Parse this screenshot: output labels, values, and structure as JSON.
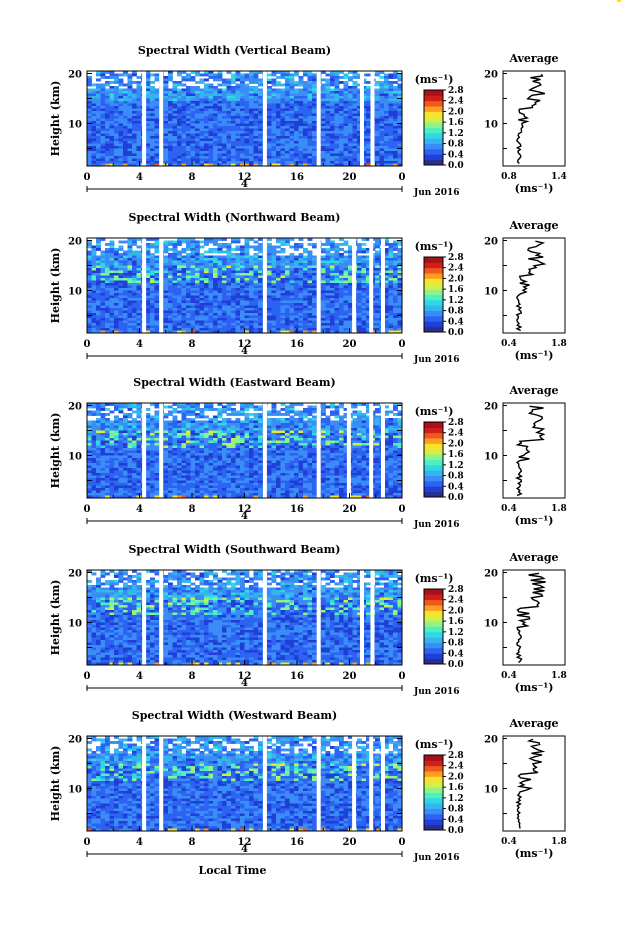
{
  "colorbar": {
    "unit_label": "(ms⁻¹)",
    "ticks": [
      "0.0",
      "0.4",
      "0.8",
      "1.2",
      "1.6",
      "2.0",
      "2.4",
      "2.8"
    ],
    "colors": [
      "#2a2f8f",
      "#1f3fd6",
      "#2d63f2",
      "#3a8cf7",
      "#35b4f0",
      "#30d8e6",
      "#4ef0c0",
      "#8ef48a",
      "#d4f046",
      "#fbe12c",
      "#fb9e22",
      "#f0581c",
      "#cf1f1a",
      "#a8101a"
    ]
  },
  "axes": {
    "x_ticks": [
      "0",
      "4",
      "8",
      "12",
      "16",
      "20",
      "0"
    ],
    "y_label": "Height (km)",
    "y_ticks": [
      "10",
      "20"
    ],
    "date_label": "Jun 2016",
    "day_marker": "4",
    "xlabel": "Local Time"
  },
  "average_title": "Average",
  "average_xlabel": "(ms⁻¹)",
  "chart_data": [
    {
      "type": "heatmap",
      "title": "Spectral Width (Vertical Beam)",
      "ylabel": "Height (km)",
      "xlabel": "Local Time",
      "xlim": [
        0,
        24
      ],
      "ylim": [
        1.5,
        20.5
      ],
      "clim": [
        0.0,
        3.0
      ],
      "gap_hours": [
        4.2,
        5.5,
        13.4,
        17.5,
        20.8,
        21.6
      ],
      "profile": {
        "title": "Average",
        "xlabel": "(ms⁻¹)",
        "xlim": [
          0.8,
          1.4
        ],
        "x_ticks": [
          "0.8",
          "1.4"
        ],
        "y_ticks": [
          "10",
          "20"
        ]
      }
    },
    {
      "type": "heatmap",
      "title": "Spectral Width (Northward Beam)",
      "ylabel": "Height (km)",
      "xlabel": "Local Time",
      "xlim": [
        0,
        24
      ],
      "ylim": [
        1.5,
        20.5
      ],
      "clim": [
        0.0,
        3.0
      ],
      "gap_hours": [
        4.2,
        5.5,
        13.4,
        17.5,
        20.2,
        21.5,
        22.4
      ],
      "profile": {
        "title": "Average",
        "xlabel": "(ms⁻¹)",
        "xlim": [
          0.4,
          1.8
        ],
        "x_ticks": [
          "0.4",
          "1.8"
        ],
        "y_ticks": [
          "10",
          "20"
        ]
      }
    },
    {
      "type": "heatmap",
      "title": "Spectral Width (Eastward Beam)",
      "ylabel": "Height (km)",
      "xlabel": "Local Time",
      "xlim": [
        0,
        24
      ],
      "ylim": [
        1.5,
        20.5
      ],
      "clim": [
        0.0,
        3.0
      ],
      "gap_hours": [
        4.2,
        5.5,
        13.4,
        17.5,
        19.8,
        21.5,
        22.4
      ],
      "profile": {
        "title": "Average",
        "xlabel": "(ms⁻¹)",
        "xlim": [
          0.4,
          1.8
        ],
        "x_ticks": [
          "0.4",
          "1.8"
        ],
        "y_ticks": [
          "10",
          "20"
        ]
      }
    },
    {
      "type": "heatmap",
      "title": "Spectral Width (Southward Beam)",
      "ylabel": "Height (km)",
      "xlabel": "Local Time",
      "xlim": [
        0,
        24
      ],
      "ylim": [
        1.5,
        20.5
      ],
      "clim": [
        0.0,
        3.0
      ],
      "gap_hours": [
        4.2,
        5.5,
        13.4,
        17.5,
        20.8,
        21.6
      ],
      "profile": {
        "title": "Average",
        "xlabel": "(ms⁻¹)",
        "xlim": [
          0.4,
          1.8
        ],
        "x_ticks": [
          "0.4",
          "1.8"
        ],
        "y_ticks": [
          "10",
          "20"
        ]
      }
    },
    {
      "type": "heatmap",
      "title": "Spectral Width (Westward Beam)",
      "ylabel": "Height (km)",
      "xlabel": "Local Time",
      "xlim": [
        0,
        24
      ],
      "ylim": [
        1.5,
        20.5
      ],
      "clim": [
        0.0,
        3.0
      ],
      "gap_hours": [
        4.2,
        5.5,
        13.4,
        17.5,
        20.2,
        21.5,
        22.4
      ],
      "profile": {
        "title": "Average",
        "xlabel": "(ms⁻¹)",
        "xlim": [
          0.4,
          1.8
        ],
        "x_ticks": [
          "0.4",
          "1.8"
        ],
        "y_ticks": [
          "10",
          "20"
        ]
      }
    }
  ]
}
